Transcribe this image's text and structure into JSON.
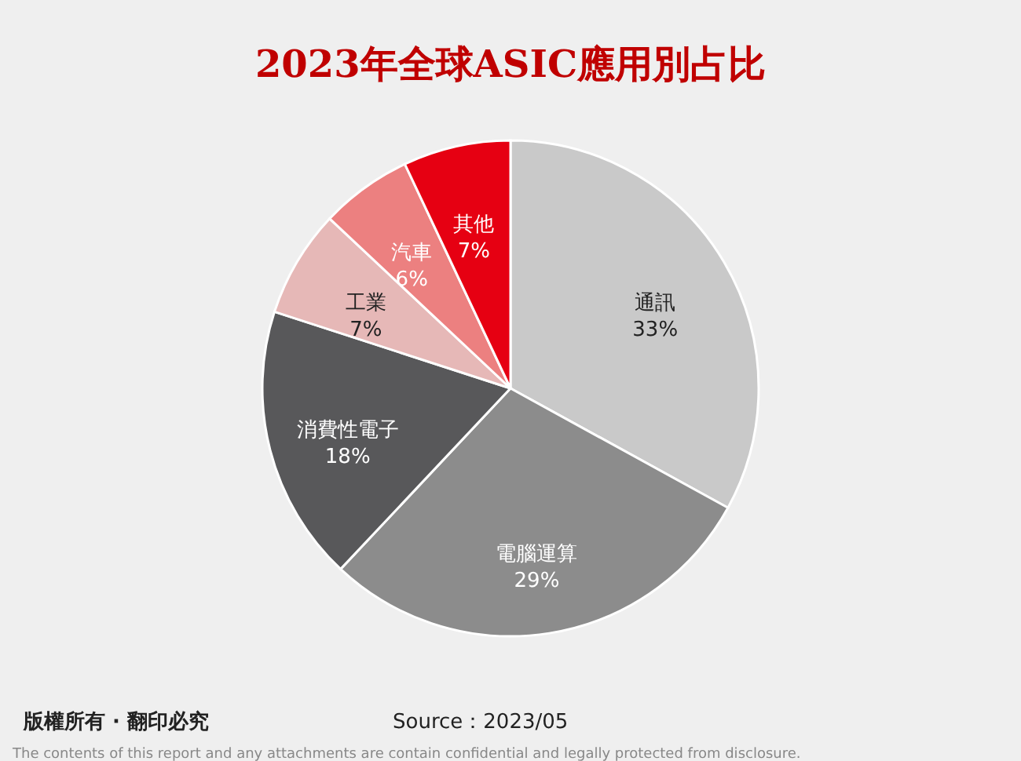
{
  "chart_data": {
    "type": "pie",
    "title": "2023年全球ASIC應用別占比",
    "categories": [
      "通訊",
      "電腦運算",
      "消費性電子",
      "工業",
      "汽車",
      "其他"
    ],
    "values": [
      33,
      29,
      18,
      7,
      6,
      7
    ],
    "value_labels": [
      "33%",
      "29%",
      "18%",
      "7%",
      "6%",
      "7%"
    ],
    "colors": [
      "#c9c9c9",
      "#8c8c8c",
      "#58585a",
      "#e6b8b7",
      "#ec8080",
      "#e60012"
    ],
    "annotations": [
      "版權所有 · 翻印必究",
      "Source：2023/05",
      "The contents of this report and any attachments are contain confidential and legally protected from disclosure."
    ]
  }
}
